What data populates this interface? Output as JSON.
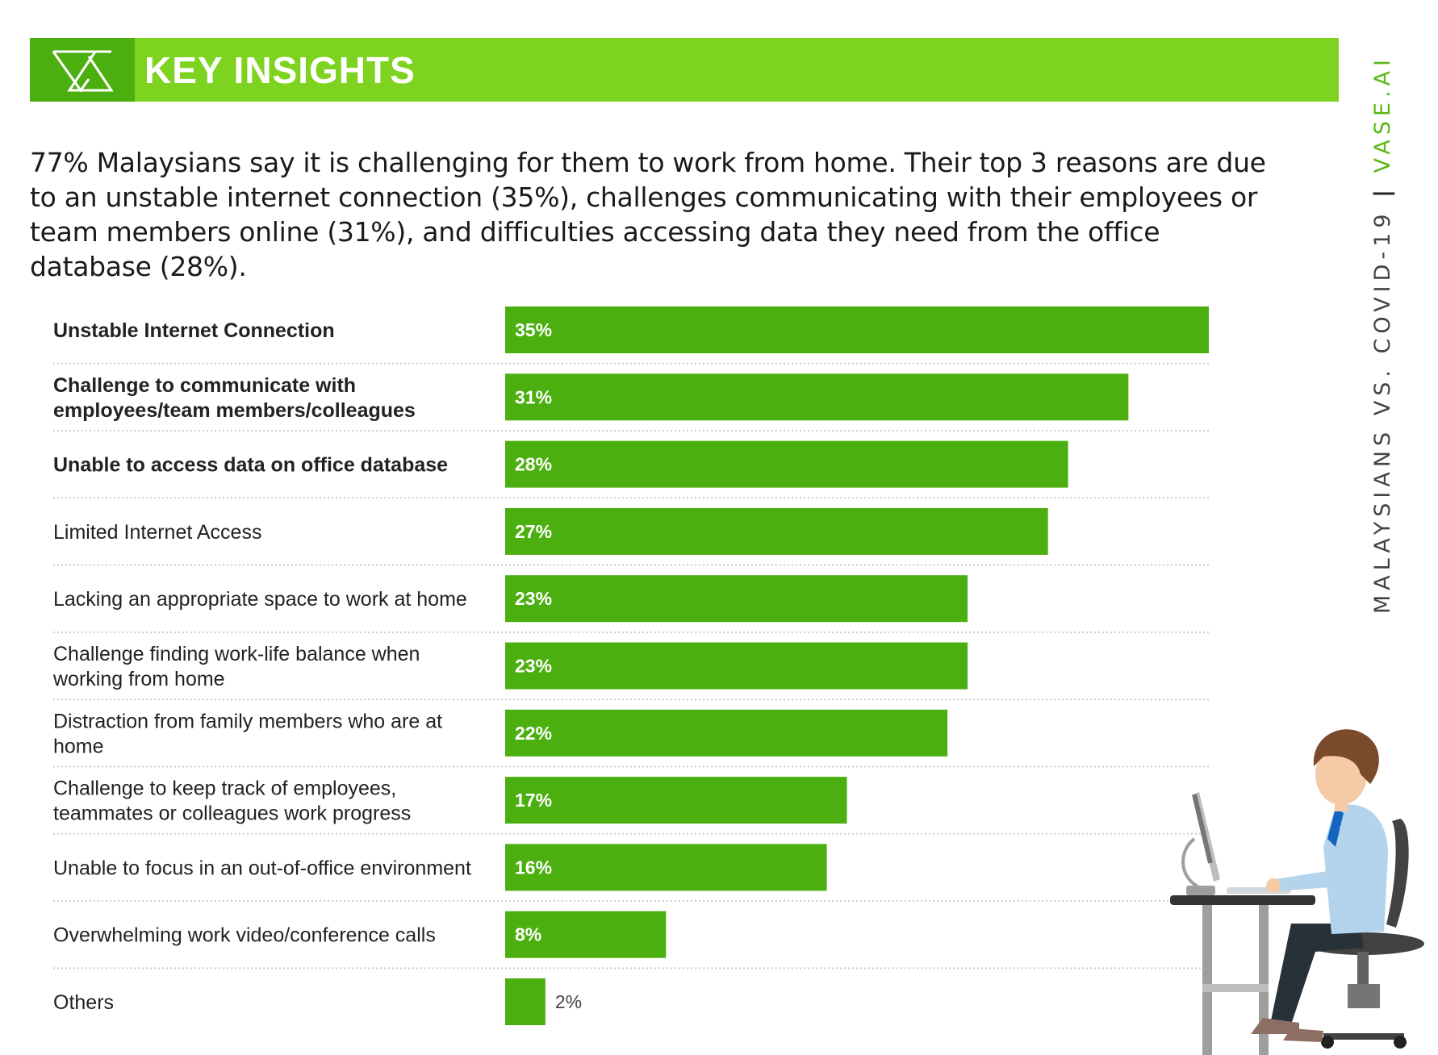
{
  "header": {
    "title": "KEY INSIGHTS",
    "logo_icon": "vase-triangle-logo-icon"
  },
  "intro": {
    "text": "77% Malaysians say it is challenging for them to work from home.  Their top 3 reasons are due to an unstable internet connection (35%), challenges communicating with their employees or team members online (31%), and difficulties accessing data they need from the office database (28%)."
  },
  "side_label": {
    "part1": "MALAYSIANS VS. COVID-19",
    "separator": "|",
    "part2": "VASE.AI"
  },
  "colors": {
    "accent": "#7ed321",
    "bar": "#4caf10",
    "logo_bg": "#4caf10",
    "divider": "#cccccc"
  },
  "illustration": {
    "icon": "person-at-computer-desk-icon"
  },
  "chart_data": {
    "type": "bar",
    "orientation": "horizontal",
    "categories": [
      "Unstable Internet Connection",
      "Challenge to communicate with\nemployees/team members/colleagues",
      "Unable to access data on office database",
      "Limited Internet Access",
      "Lacking an appropriate space to work at home",
      "Challenge finding work-life balance when\nworking from home",
      "Distraction from family members who are at\nhome",
      "Challenge to keep track of employees,\nteammates or colleagues work progress",
      "Unable to focus in an out-of-office environment",
      "Overwhelming work video/conference calls",
      "Others"
    ],
    "values": [
      35,
      31,
      28,
      27,
      23,
      23,
      22,
      17,
      16,
      8,
      2
    ],
    "value_labels": [
      "35%",
      "31%",
      "28%",
      "27%",
      "23%",
      "23%",
      "22%",
      "17%",
      "16%",
      "8%",
      "2%"
    ],
    "highlighted": [
      true,
      true,
      true,
      false,
      false,
      false,
      false,
      false,
      false,
      false,
      false
    ],
    "unit": "%",
    "xlim": [
      0,
      35
    ],
    "grid": false
  }
}
